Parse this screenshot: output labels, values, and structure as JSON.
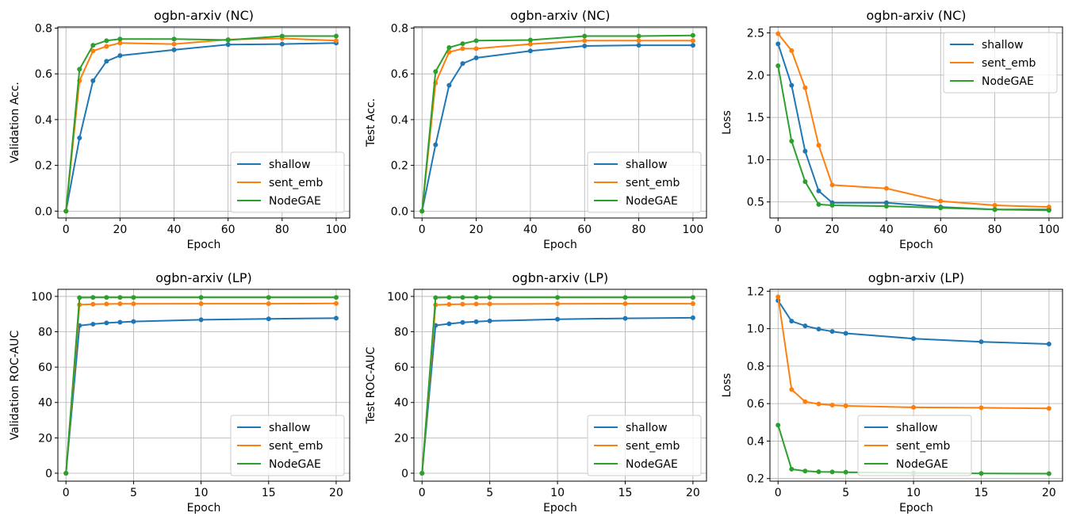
{
  "colors": {
    "shallow": "#1f77b4",
    "sent_emb": "#ff7f0e",
    "NodeGAE": "#2ca02c"
  },
  "chart_data": [
    {
      "type": "line",
      "title": "ogbn-arxiv (NC)",
      "xlabel": "Epoch",
      "ylabel": "Validation Acc.",
      "xlim": [
        -3,
        105
      ],
      "ylim": [
        -0.03,
        0.805
      ],
      "xticks": [
        0,
        20,
        40,
        60,
        80,
        100
      ],
      "xtick_labels": [
        "0",
        "20",
        "40",
        "60",
        "80",
        "100"
      ],
      "yticks": [
        0,
        0.2,
        0.4,
        0.6,
        0.8
      ],
      "ytick_labels": [
        "0.0",
        "0.2",
        "0.4",
        "0.6",
        "0.8"
      ],
      "grid": true,
      "legend": "lower-right",
      "x": [
        0,
        5,
        10,
        15,
        20,
        40,
        60,
        80,
        100
      ],
      "series": [
        {
          "name": "shallow",
          "values": [
            0,
            0.32,
            0.57,
            0.655,
            0.68,
            0.705,
            0.728,
            0.73,
            0.735
          ]
        },
        {
          "name": "sent_emb",
          "values": [
            0,
            0.57,
            0.7,
            0.72,
            0.735,
            0.73,
            0.75,
            0.755,
            0.745
          ]
        },
        {
          "name": "NodeGAE",
          "values": [
            0,
            0.62,
            0.725,
            0.745,
            0.752,
            0.752,
            0.748,
            0.765,
            0.765
          ]
        }
      ]
    },
    {
      "type": "line",
      "title": "ogbn-arxiv (NC)",
      "xlabel": "Epoch",
      "ylabel": "Test Acc.",
      "xlim": [
        -3,
        105
      ],
      "ylim": [
        -0.03,
        0.805
      ],
      "xticks": [
        0,
        20,
        40,
        60,
        80,
        100
      ],
      "xtick_labels": [
        "0",
        "20",
        "40",
        "60",
        "80",
        "100"
      ],
      "yticks": [
        0,
        0.2,
        0.4,
        0.6,
        0.8
      ],
      "ytick_labels": [
        "0.0",
        "0.2",
        "0.4",
        "0.6",
        "0.8"
      ],
      "grid": true,
      "legend": "lower-right",
      "x": [
        0,
        5,
        10,
        15,
        20,
        40,
        60,
        80,
        100
      ],
      "series": [
        {
          "name": "shallow",
          "values": [
            0,
            0.29,
            0.55,
            0.645,
            0.67,
            0.7,
            0.722,
            0.725,
            0.725
          ]
        },
        {
          "name": "sent_emb",
          "values": [
            0,
            0.56,
            0.695,
            0.71,
            0.71,
            0.73,
            0.745,
            0.745,
            0.745
          ]
        },
        {
          "name": "NodeGAE",
          "values": [
            0,
            0.61,
            0.715,
            0.732,
            0.745,
            0.748,
            0.765,
            0.765,
            0.768
          ]
        }
      ]
    },
    {
      "type": "line",
      "title": "ogbn-arxiv (NC)",
      "xlabel": "Epoch",
      "ylabel": "Loss",
      "xlim": [
        -3,
        105
      ],
      "ylim": [
        0.31,
        2.57
      ],
      "xticks": [
        0,
        20,
        40,
        60,
        80,
        100
      ],
      "xtick_labels": [
        "0",
        "20",
        "40",
        "60",
        "80",
        "100"
      ],
      "yticks": [
        0.5,
        1.0,
        1.5,
        2.0,
        2.5
      ],
      "ytick_labels": [
        "0.5",
        "1.0",
        "1.5",
        "2.0",
        "2.5"
      ],
      "grid": true,
      "legend": "upper-right",
      "x": [
        0,
        5,
        10,
        15,
        20,
        40,
        60,
        80,
        100
      ],
      "series": [
        {
          "name": "shallow",
          "values": [
            2.37,
            1.88,
            1.1,
            0.63,
            0.49,
            0.49,
            0.44,
            0.41,
            0.41
          ]
        },
        {
          "name": "sent_emb",
          "values": [
            2.49,
            2.29,
            1.85,
            1.17,
            0.7,
            0.66,
            0.51,
            0.46,
            0.44
          ]
        },
        {
          "name": "NodeGAE",
          "values": [
            2.11,
            1.22,
            0.74,
            0.47,
            0.46,
            0.45,
            0.43,
            0.41,
            0.4
          ]
        }
      ]
    },
    {
      "type": "line",
      "title": "ogbn-arxiv (LP)",
      "xlabel": "Epoch",
      "ylabel": "Validation ROC-AUC",
      "xlim": [
        -0.6,
        21
      ],
      "ylim": [
        -4.5,
        104
      ],
      "xticks": [
        0,
        5,
        10,
        15,
        20
      ],
      "xtick_labels": [
        "0",
        "5",
        "10",
        "15",
        "20"
      ],
      "yticks": [
        0,
        20,
        40,
        60,
        80,
        100
      ],
      "ytick_labels": [
        "0",
        "20",
        "40",
        "60",
        "80",
        "100"
      ],
      "grid": true,
      "legend": "lower-right",
      "x": [
        0,
        1,
        2,
        3,
        4,
        5,
        10,
        15,
        20
      ],
      "series": [
        {
          "name": "shallow",
          "values": [
            0,
            83.5,
            84.3,
            85.0,
            85.4,
            85.8,
            86.8,
            87.3,
            87.7
          ]
        },
        {
          "name": "sent_emb",
          "values": [
            0,
            95.3,
            95.6,
            95.7,
            95.8,
            95.8,
            95.9,
            95.9,
            96.0
          ]
        },
        {
          "name": "NodeGAE",
          "values": [
            0,
            99.3,
            99.4,
            99.4,
            99.4,
            99.4,
            99.4,
            99.4,
            99.4
          ]
        }
      ]
    },
    {
      "type": "line",
      "title": "ogbn-arxiv (LP)",
      "xlabel": "Epoch",
      "ylabel": "Test ROC-AUC",
      "xlim": [
        -0.6,
        21
      ],
      "ylim": [
        -4.5,
        104
      ],
      "xticks": [
        0,
        5,
        10,
        15,
        20
      ],
      "xtick_labels": [
        "0",
        "5",
        "10",
        "15",
        "20"
      ],
      "yticks": [
        0,
        20,
        40,
        60,
        80,
        100
      ],
      "ytick_labels": [
        "0",
        "20",
        "40",
        "60",
        "80",
        "100"
      ],
      "grid": true,
      "legend": "lower-right",
      "x": [
        0,
        1,
        2,
        3,
        4,
        5,
        10,
        15,
        20
      ],
      "series": [
        {
          "name": "shallow",
          "values": [
            0,
            83.6,
            84.5,
            85.3,
            85.7,
            86.1,
            87.1,
            87.6,
            87.9
          ]
        },
        {
          "name": "sent_emb",
          "values": [
            0,
            95.2,
            95.5,
            95.6,
            95.7,
            95.7,
            95.8,
            95.9,
            95.9
          ]
        },
        {
          "name": "NodeGAE",
          "values": [
            0,
            99.3,
            99.4,
            99.4,
            99.4,
            99.4,
            99.4,
            99.4,
            99.4
          ]
        }
      ]
    },
    {
      "type": "line",
      "title": "ogbn-arxiv (LP)",
      "xlabel": "Epoch",
      "ylabel": "Loss",
      "xlim": [
        -0.6,
        21
      ],
      "ylim": [
        0.186,
        1.21
      ],
      "xticks": [
        0,
        5,
        10,
        15,
        20
      ],
      "xtick_labels": [
        "0",
        "5",
        "10",
        "15",
        "20"
      ],
      "yticks": [
        0.2,
        0.4,
        0.6,
        0.8,
        1.0,
        1.2
      ],
      "ytick_labels": [
        "0.2",
        "0.4",
        "0.6",
        "0.8",
        "1.0",
        "1.2"
      ],
      "grid": true,
      "legend": "lower-center",
      "x": [
        0,
        1,
        2,
        3,
        4,
        5,
        10,
        15,
        20
      ],
      "series": [
        {
          "name": "shallow",
          "values": [
            1.15,
            1.04,
            1.015,
            0.998,
            0.985,
            0.975,
            0.947,
            0.93,
            0.918
          ]
        },
        {
          "name": "sent_emb",
          "values": [
            1.17,
            0.675,
            0.61,
            0.598,
            0.592,
            0.588,
            0.58,
            0.578,
            0.574
          ]
        },
        {
          "name": "NodeGAE",
          "values": [
            0.485,
            0.25,
            0.24,
            0.236,
            0.235,
            0.234,
            0.23,
            0.227,
            0.226
          ]
        }
      ]
    }
  ]
}
